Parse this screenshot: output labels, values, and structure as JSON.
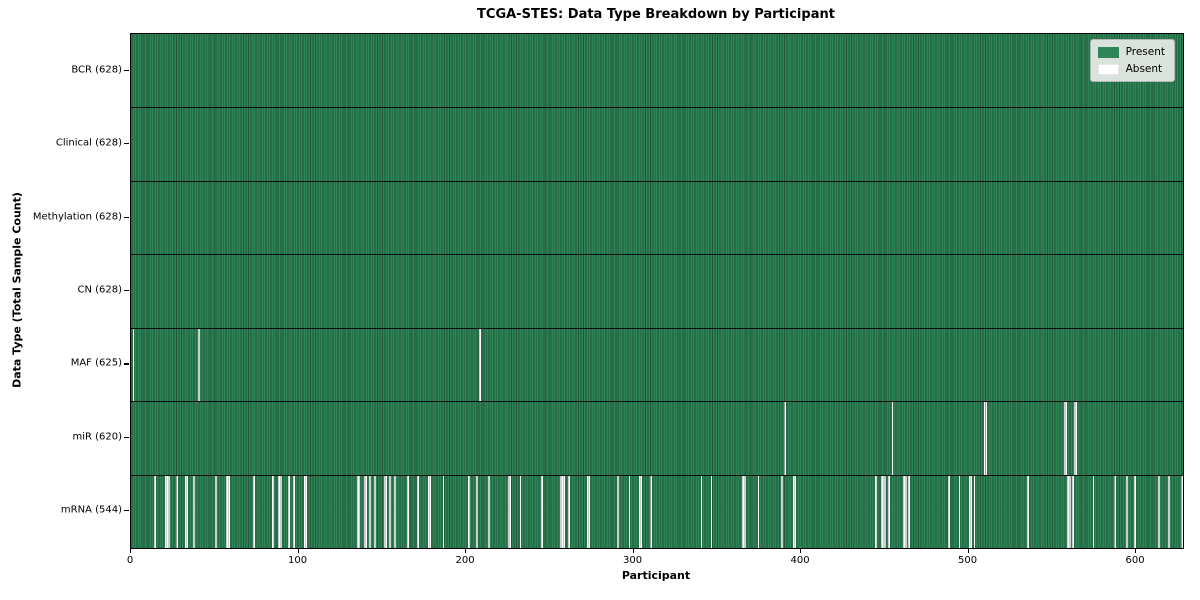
{
  "title": "TCGA-STES: Data Type Breakdown by Participant",
  "chart_data": {
    "type": "heatmap",
    "title": "TCGA-STES: Data Type Breakdown by Participant",
    "xlabel": "Participant",
    "ylabel": "Data Type (Total Sample Count)",
    "x_ticks": [
      0,
      100,
      200,
      300,
      400,
      500,
      600
    ],
    "x_range": [
      0,
      628
    ],
    "n_participants": 628,
    "grid": false,
    "legend_position": "upper right",
    "colors": {
      "present": "#2e8557",
      "absent": "#ffffff"
    },
    "legend": [
      {
        "label": "Present",
        "color": "#2e8557"
      },
      {
        "label": "Absent",
        "color": "#ffffff"
      }
    ],
    "rows": [
      {
        "name": "BCR",
        "label": "BCR (628)",
        "present_count": 628,
        "absent_count": 0,
        "absent_participants": []
      },
      {
        "name": "Clinical",
        "label": "Clinical (628)",
        "present_count": 628,
        "absent_count": 0,
        "absent_participants": []
      },
      {
        "name": "Methylation",
        "label": "Methylation (628)",
        "present_count": 628,
        "absent_count": 0,
        "absent_participants": []
      },
      {
        "name": "CN",
        "label": "CN (628)",
        "present_count": 628,
        "absent_count": 0,
        "absent_participants": []
      },
      {
        "name": "MAF",
        "label": "MAF (625)",
        "present_count": 625,
        "absent_count": 3,
        "absent_participants": [
          1,
          40,
          208
        ]
      },
      {
        "name": "miR",
        "label": "miR (620)",
        "present_count": 620,
        "absent_count": 8,
        "absent_participants": [
          390,
          454,
          509,
          510,
          557,
          558,
          563,
          564
        ]
      },
      {
        "name": "mRNA",
        "label": "mRNA (544)",
        "present_count": 544,
        "absent_count": 84,
        "absent_participants": [
          14,
          20,
          21,
          22,
          27,
          32,
          33,
          37,
          50,
          57,
          58,
          73,
          84,
          88,
          89,
          94,
          97,
          103,
          104,
          135,
          136,
          139,
          140,
          142,
          145,
          151,
          152,
          154,
          157,
          165,
          171,
          177,
          178,
          186,
          201,
          206,
          213,
          225,
          226,
          232,
          245,
          256,
          257,
          258,
          261,
          272,
          273,
          290,
          297,
          303,
          304,
          310,
          340,
          346,
          365,
          366,
          374,
          388,
          395,
          396,
          444,
          448,
          449,
          450,
          452,
          461,
          462,
          464,
          488,
          494,
          500,
          501,
          503,
          535,
          559,
          560,
          562,
          574,
          587,
          594,
          599,
          613,
          619,
          627
        ]
      }
    ]
  }
}
